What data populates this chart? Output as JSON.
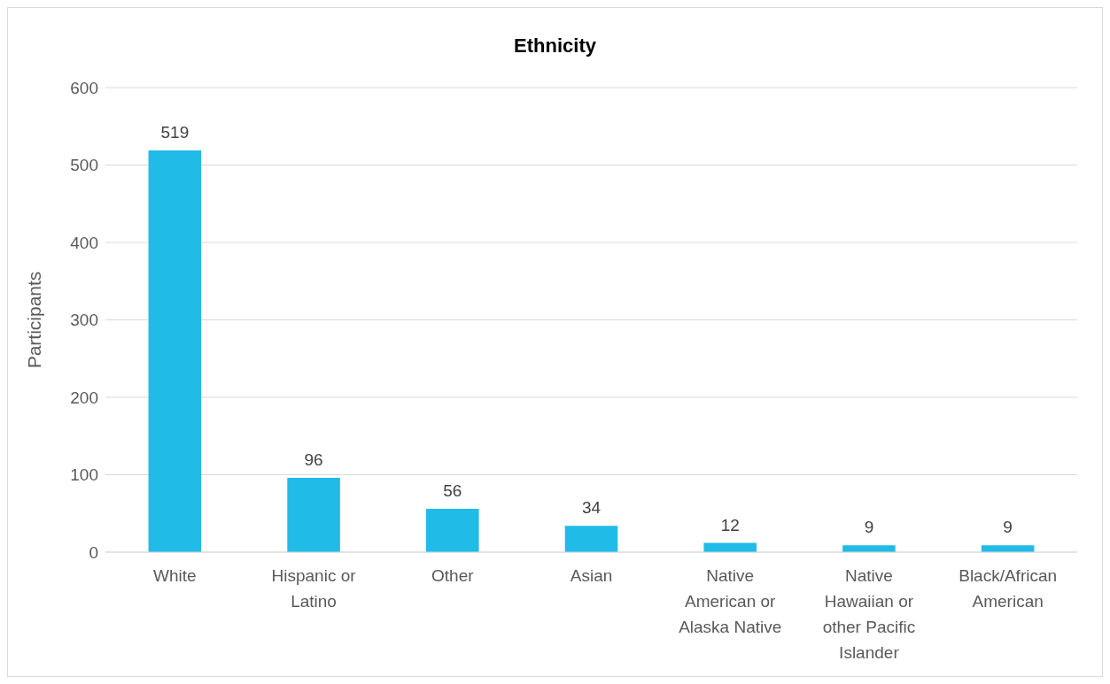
{
  "chart_data": {
    "type": "bar",
    "title": "Ethnicity",
    "ylabel": "Participants",
    "categories": [
      "White",
      "Hispanic or Latino",
      "Other",
      "Asian",
      "Native American or Alaska Native",
      "Native Hawaiian or other Pacific Islander",
      "Black/African American"
    ],
    "values": [
      519,
      96,
      56,
      34,
      12,
      9,
      9
    ],
    "color": "#21bbe8",
    "ylim": [
      0,
      600
    ],
    "yticks": [
      0,
      100,
      200,
      300,
      400,
      500,
      600
    ],
    "grid": "y",
    "data_labels": true
  }
}
